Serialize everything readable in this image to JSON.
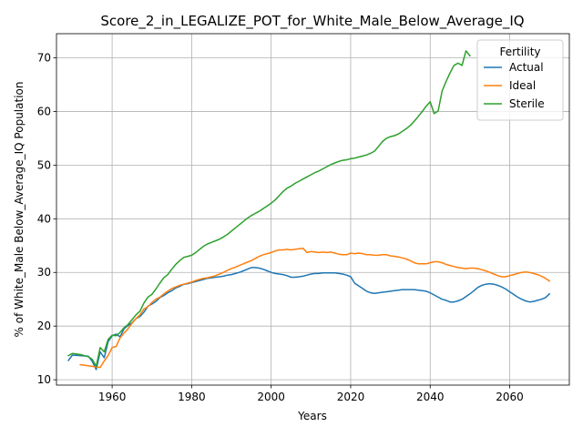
{
  "chart_data": {
    "type": "line",
    "title": "Score_2_in_LEGALIZE_POT_for_White_Male_Below_Average_IQ",
    "xlabel": "Years",
    "ylabel": "% of White_Male Below_Average_IQ Population",
    "xlim": [
      1946,
      2075
    ],
    "ylim": [
      9,
      74.5
    ],
    "xticks": [
      1960,
      1980,
      2000,
      2020,
      2040,
      2060
    ],
    "yticks": [
      10,
      20,
      30,
      40,
      50,
      60,
      70
    ],
    "grid": true,
    "legend": {
      "title": "Fertility",
      "placement": "top-right"
    },
    "series": [
      {
        "name": "Actual",
        "color": "#1f77b4",
        "x": [
          1949,
          1950,
          1952,
          1954,
          1955,
          1956,
          1957,
          1958,
          1959,
          1960,
          1961,
          1962,
          1963,
          1964,
          1965,
          1966,
          1967,
          1968,
          1969,
          1970,
          1971,
          1972,
          1973,
          1974,
          1975,
          1976,
          1977,
          1978,
          1979,
          1980,
          1981,
          1982,
          1983,
          1984,
          1985,
          1986,
          1987,
          1988,
          1989,
          1990,
          1991,
          1992,
          1993,
          1994,
          1995,
          1996,
          1997,
          1998,
          1999,
          2000,
          2001,
          2002,
          2003,
          2004,
          2005,
          2006,
          2007,
          2008,
          2009,
          2010,
          2011,
          2012,
          2013,
          2014,
          2015,
          2016,
          2017,
          2018,
          2019,
          2020,
          2021,
          2022,
          2023,
          2024,
          2025,
          2026,
          2027,
          2028,
          2029,
          2030,
          2031,
          2032,
          2033,
          2034,
          2035,
          2036,
          2037,
          2038,
          2039,
          2040,
          2041,
          2042,
          2043,
          2044,
          2045,
          2046,
          2047,
          2048,
          2049,
          2050,
          2051,
          2052,
          2053,
          2054,
          2055,
          2056,
          2057,
          2058,
          2059,
          2060,
          2061,
          2062,
          2063,
          2064,
          2065,
          2066,
          2067,
          2068,
          2069,
          2070
        ],
        "values": [
          13.6,
          14.6,
          14.5,
          14.4,
          13.4,
          11.9,
          15.2,
          14.1,
          17.1,
          18.2,
          18.5,
          18.0,
          19.5,
          20.1,
          20.6,
          21.4,
          21.8,
          22.6,
          23.7,
          24.1,
          24.6,
          25.3,
          25.7,
          26.2,
          26.6,
          27.1,
          27.4,
          27.8,
          27.9,
          28.1,
          28.3,
          28.5,
          28.7,
          28.9,
          29.0,
          29.1,
          29.2,
          29.3,
          29.5,
          29.6,
          29.8,
          30.0,
          30.3,
          30.6,
          30.9,
          30.9,
          30.8,
          30.6,
          30.3,
          30.0,
          29.8,
          29.7,
          29.6,
          29.4,
          29.1,
          29.1,
          29.2,
          29.3,
          29.5,
          29.7,
          29.8,
          29.8,
          29.9,
          29.9,
          29.9,
          29.9,
          29.8,
          29.7,
          29.5,
          29.2,
          28.0,
          27.5,
          27.0,
          26.5,
          26.2,
          26.1,
          26.2,
          26.3,
          26.4,
          26.5,
          26.6,
          26.7,
          26.8,
          26.8,
          26.8,
          26.8,
          26.7,
          26.6,
          26.5,
          26.2,
          25.8,
          25.4,
          25.0,
          24.8,
          24.5,
          24.5,
          24.7,
          25.0,
          25.5,
          26.0,
          26.6,
          27.2,
          27.6,
          27.8,
          27.9,
          27.8,
          27.6,
          27.3,
          26.9,
          26.4,
          25.9,
          25.4,
          25.0,
          24.7,
          24.5,
          24.6,
          24.8,
          25.0,
          25.3,
          26.0
        ]
      },
      {
        "name": "Ideal",
        "color": "#ff7f0e",
        "x": [
          1952,
          1954,
          1956,
          1957,
          1958,
          1959,
          1960,
          1961,
          1962,
          1963,
          1964,
          1965,
          1966,
          1967,
          1968,
          1969,
          1970,
          1971,
          1972,
          1973,
          1974,
          1975,
          1976,
          1977,
          1978,
          1979,
          1980,
          1981,
          1982,
          1983,
          1984,
          1985,
          1986,
          1987,
          1988,
          1989,
          1990,
          1991,
          1992,
          1993,
          1994,
          1995,
          1996,
          1997,
          1998,
          1999,
          2000,
          2001,
          2002,
          2003,
          2004,
          2005,
          2006,
          2007,
          2008,
          2009,
          2010,
          2011,
          2012,
          2013,
          2014,
          2015,
          2016,
          2017,
          2018,
          2019,
          2020,
          2021,
          2022,
          2023,
          2024,
          2025,
          2026,
          2027,
          2028,
          2029,
          2030,
          2031,
          2032,
          2033,
          2034,
          2035,
          2036,
          2037,
          2038,
          2039,
          2040,
          2041,
          2042,
          2043,
          2044,
          2045,
          2046,
          2047,
          2048,
          2049,
          2050,
          2051,
          2052,
          2053,
          2054,
          2055,
          2056,
          2057,
          2058,
          2059,
          2060,
          2061,
          2062,
          2063,
          2064,
          2065,
          2066,
          2067,
          2068,
          2069,
          2070
        ],
        "values": [
          12.8,
          12.6,
          12.4,
          12.3,
          13.5,
          14.5,
          16.0,
          16.2,
          17.8,
          18.7,
          19.5,
          20.5,
          21.4,
          22.1,
          23.2,
          23.6,
          24.4,
          25.0,
          25.4,
          26.0,
          26.5,
          27.0,
          27.3,
          27.6,
          27.8,
          28.0,
          28.2,
          28.5,
          28.7,
          28.9,
          29.0,
          29.2,
          29.4,
          29.7,
          30.0,
          30.4,
          30.7,
          31.0,
          31.3,
          31.6,
          31.9,
          32.2,
          32.6,
          33.0,
          33.3,
          33.5,
          33.7,
          34.0,
          34.2,
          34.2,
          34.3,
          34.2,
          34.3,
          34.4,
          34.5,
          33.7,
          33.9,
          33.8,
          33.7,
          33.8,
          33.7,
          33.8,
          33.6,
          33.4,
          33.3,
          33.3,
          33.6,
          33.5,
          33.6,
          33.5,
          33.3,
          33.3,
          33.2,
          33.2,
          33.3,
          33.3,
          33.1,
          33.0,
          32.9,
          32.7,
          32.5,
          32.2,
          31.8,
          31.6,
          31.6,
          31.6,
          31.8,
          32.0,
          32.0,
          31.8,
          31.5,
          31.3,
          31.1,
          30.9,
          30.8,
          30.7,
          30.8,
          30.8,
          30.7,
          30.5,
          30.3,
          30.0,
          29.7,
          29.4,
          29.2,
          29.2,
          29.4,
          29.6,
          29.8,
          30.0,
          30.1,
          30.0,
          29.8,
          29.6,
          29.3,
          28.9,
          28.4
        ]
      },
      {
        "name": "Sterile",
        "color": "#2ca02c",
        "x": [
          1949,
          1950,
          1952,
          1954,
          1955,
          1956,
          1957,
          1958,
          1959,
          1960,
          1961,
          1962,
          1963,
          1964,
          1965,
          1966,
          1967,
          1968,
          1969,
          1970,
          1971,
          1972,
          1973,
          1974,
          1975,
          1976,
          1977,
          1978,
          1979,
          1980,
          1981,
          1982,
          1983,
          1984,
          1985,
          1986,
          1987,
          1988,
          1989,
          1990,
          1991,
          1992,
          1993,
          1994,
          1995,
          1996,
          1997,
          1998,
          1999,
          2000,
          2001,
          2002,
          2003,
          2004,
          2005,
          2006,
          2007,
          2008,
          2009,
          2010,
          2011,
          2012,
          2013,
          2014,
          2015,
          2016,
          2017,
          2018,
          2019,
          2020,
          2021,
          2022,
          2023,
          2024,
          2025,
          2026,
          2027,
          2028,
          2029,
          2030,
          2031,
          2032,
          2033,
          2034,
          2035,
          2036,
          2037,
          2038,
          2039,
          2040,
          2041,
          2042,
          2043,
          2044,
          2045,
          2046,
          2047,
          2048,
          2049,
          2050
        ],
        "values": [
          14.5,
          14.9,
          14.7,
          14.3,
          13.8,
          12.5,
          16.0,
          15.2,
          17.5,
          18.3,
          18.2,
          18.8,
          19.7,
          20.3,
          21.2,
          22.1,
          22.8,
          24.3,
          25.4,
          25.9,
          26.9,
          28.0,
          29.0,
          29.6,
          30.6,
          31.5,
          32.2,
          32.8,
          33.0,
          33.2,
          33.7,
          34.3,
          34.9,
          35.3,
          35.6,
          35.9,
          36.2,
          36.6,
          37.1,
          37.7,
          38.3,
          38.9,
          39.5,
          40.1,
          40.6,
          41.0,
          41.4,
          41.9,
          42.4,
          42.9,
          43.5,
          44.3,
          45.1,
          45.7,
          46.1,
          46.6,
          47.0,
          47.4,
          47.8,
          48.2,
          48.6,
          48.9,
          49.3,
          49.7,
          50.1,
          50.4,
          50.7,
          50.9,
          51.0,
          51.2,
          51.3,
          51.5,
          51.7,
          51.9,
          52.2,
          52.6,
          53.5,
          54.4,
          55.0,
          55.3,
          55.5,
          55.8,
          56.3,
          56.8,
          57.4,
          58.2,
          59.1,
          60.0,
          61.0,
          61.8,
          59.6,
          60.1,
          63.8,
          65.6,
          67.2,
          68.6,
          69.0,
          68.6,
          71.3,
          70.4
        ]
      }
    ]
  }
}
